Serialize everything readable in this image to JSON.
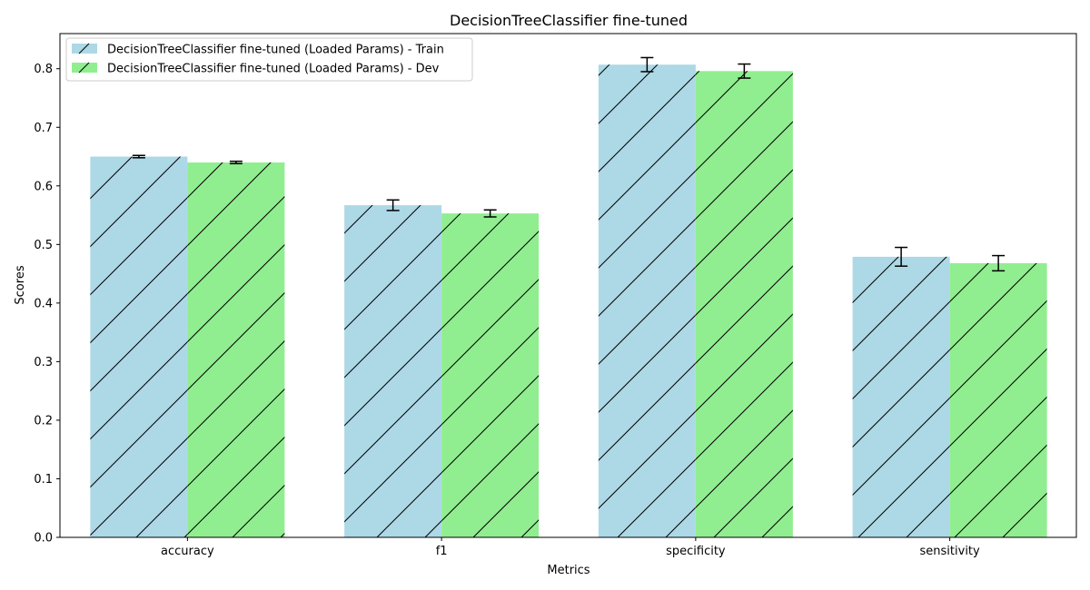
{
  "chart_data": {
    "type": "bar",
    "title": "DecisionTreeClassifier fine-tuned",
    "xlabel": "Metrics",
    "ylabel": "Scores",
    "categories": [
      "accuracy",
      "f1",
      "specificity",
      "sensitivity"
    ],
    "ylim": [
      0,
      0.86
    ],
    "yticks": [
      0.0,
      0.1,
      0.2,
      0.3,
      0.4,
      0.5,
      0.6,
      0.7,
      0.8
    ],
    "grid": false,
    "legend_position": "top-left",
    "series": [
      {
        "name": "DecisionTreeClassifier fine-tuned (Loaded Params) - Train",
        "color": "#add8e6",
        "hatch": "/",
        "values": [
          0.65,
          0.567,
          0.807,
          0.479
        ],
        "errors": [
          0.002,
          0.009,
          0.012,
          0.016
        ]
      },
      {
        "name": "DecisionTreeClassifier fine-tuned (Loaded Params) - Dev",
        "color": "#90ee90",
        "hatch": "/",
        "values": [
          0.64,
          0.553,
          0.796,
          0.468
        ],
        "errors": [
          0.002,
          0.006,
          0.012,
          0.013
        ]
      }
    ]
  }
}
